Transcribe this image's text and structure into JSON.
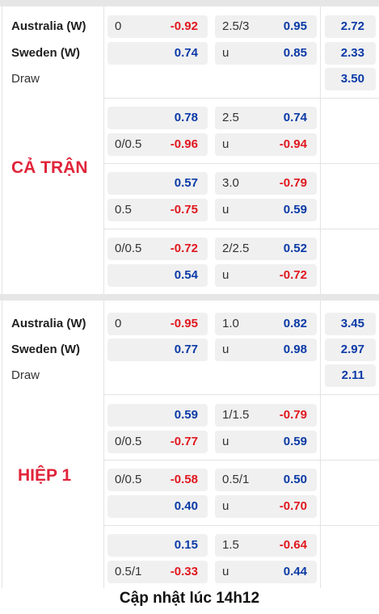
{
  "full_match": {
    "label": "CẢ TRẬN",
    "team_home": "Australia (W)",
    "team_away": "Sweden (W)",
    "draw": "Draw",
    "main_rows": [
      {
        "hcap": "0",
        "hcap_odds": "-0.92",
        "ou": "2.5/3",
        "ou_odds": "0.95",
        "x12": "2.72"
      },
      {
        "hcap": "",
        "hcap_odds": "0.74",
        "ou": "u",
        "ou_odds": "0.85",
        "x12": "2.33"
      },
      {
        "x12": "3.50"
      }
    ],
    "alt_lines": [
      {
        "home_hcap": "",
        "home_odds": "0.78",
        "ou": "2.5",
        "ou_odds": "0.74",
        "away_hcap": "0/0.5",
        "away_odds": "-0.96",
        "u": "u",
        "u_odds": "-0.94"
      },
      {
        "home_hcap": "",
        "home_odds": "0.57",
        "ou": "3.0",
        "ou_odds": "-0.79",
        "away_hcap": "0.5",
        "away_odds": "-0.75",
        "u": "u",
        "u_odds": "0.59"
      },
      {
        "home_hcap": "0/0.5",
        "home_odds": "-0.72",
        "ou": "2/2.5",
        "ou_odds": "0.52",
        "away_hcap": "",
        "away_odds": "0.54",
        "u": "u",
        "u_odds": "-0.72"
      }
    ]
  },
  "first_half": {
    "label": "HIỆP 1",
    "team_home": "Australia (W)",
    "team_away": "Sweden (W)",
    "draw": "Draw",
    "main_rows": [
      {
        "hcap": "0",
        "hcap_odds": "-0.95",
        "ou": "1.0",
        "ou_odds": "0.82",
        "x12": "3.45"
      },
      {
        "hcap": "",
        "hcap_odds": "0.77",
        "ou": "u",
        "ou_odds": "0.98",
        "x12": "2.97"
      },
      {
        "x12": "2.11"
      }
    ],
    "alt_lines": [
      {
        "home_hcap": "",
        "home_odds": "0.59",
        "ou": "1/1.5",
        "ou_odds": "-0.79",
        "away_hcap": "0/0.5",
        "away_odds": "-0.77",
        "u": "u",
        "u_odds": "0.59"
      },
      {
        "home_hcap": "0/0.5",
        "home_odds": "-0.58",
        "ou": "0.5/1",
        "ou_odds": "0.50",
        "away_hcap": "",
        "away_odds": "0.40",
        "u": "u",
        "u_odds": "-0.70"
      },
      {
        "home_hcap": "",
        "home_odds": "0.15",
        "ou": "1.5",
        "ou_odds": "-0.64",
        "away_hcap": "0.5/1",
        "away_odds": "-0.33",
        "u": "u",
        "u_odds": "0.44"
      }
    ]
  },
  "footer": "Cập nhật lúc 14h12",
  "colors": {
    "positive": "#0b3aa6",
    "negative": "#e0181f",
    "label": "#e0243a"
  }
}
